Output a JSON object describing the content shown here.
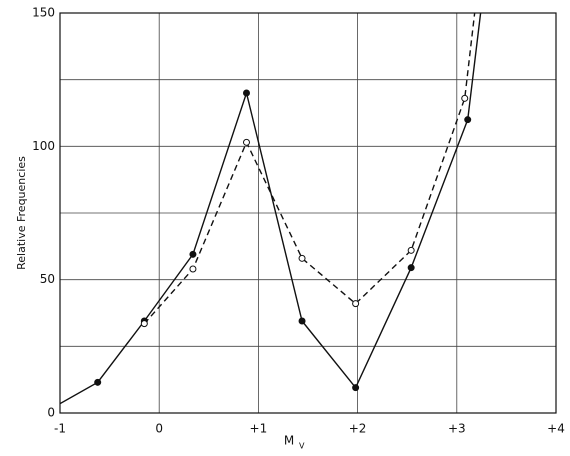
{
  "chart_data": {
    "type": "line",
    "x_label": "M",
    "x_label_subscript": "V",
    "y_label": "Relative Frequencies",
    "xlim": [
      -1,
      4
    ],
    "ylim": [
      0,
      150
    ],
    "xticks": [
      -1,
      0,
      {
        "value": 1,
        "label": "+1"
      },
      {
        "value": 2,
        "label": "+2"
      },
      {
        "value": 3,
        "label": "+3"
      },
      {
        "value": 4,
        "label": "+4"
      }
    ],
    "yticks": [
      0,
      50,
      100,
      150
    ],
    "ygrid": [
      0,
      25,
      50,
      75,
      100,
      125,
      150
    ],
    "grid": true,
    "series": [
      {
        "color": "#111111",
        "dash": "solid",
        "marker": "filled",
        "x": [
          -1,
          -0.62,
          -0.15,
          0.34,
          0.88,
          1.44,
          1.98,
          2.54,
          3.11,
          3.24
        ],
        "values": [
          3.5,
          11.5,
          34.5,
          59.5,
          120,
          34.5,
          9.5,
          54.5,
          110,
          150
        ]
      },
      {
        "color": "#111111",
        "dash": "dashed",
        "marker": "open",
        "x": [
          -0.15,
          0.34,
          0.88,
          1.44,
          1.98,
          2.54,
          3.08,
          3.18
        ],
        "values": [
          33.5,
          54,
          101.5,
          58,
          41,
          61,
          118,
          150
        ]
      }
    ]
  }
}
